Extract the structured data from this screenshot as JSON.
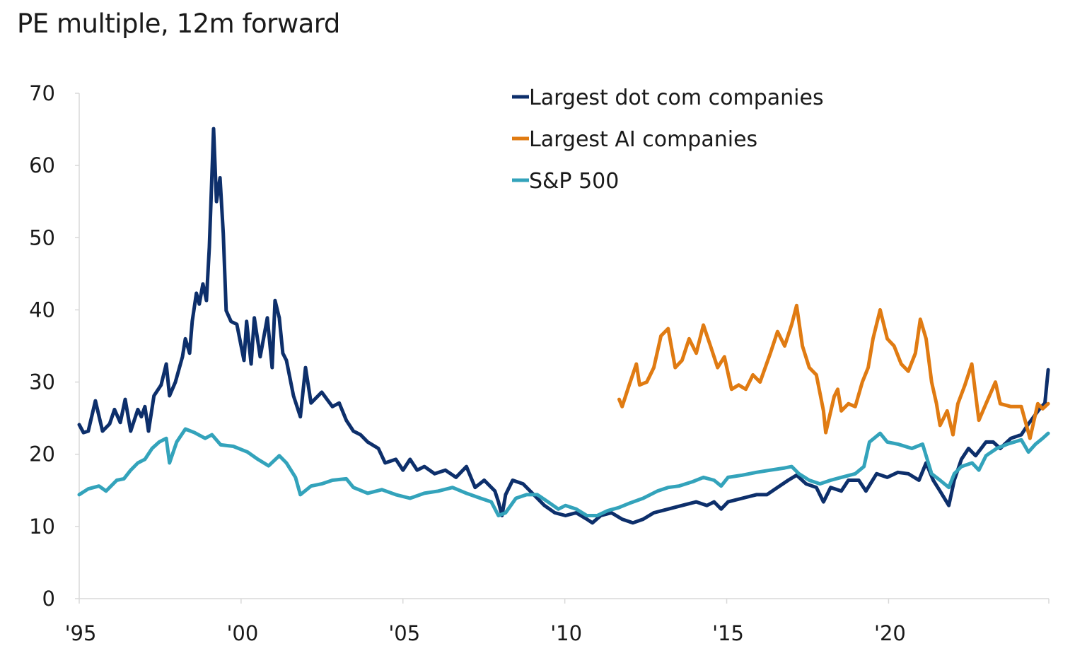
{
  "chart_data": {
    "type": "line",
    "title": "PE multiple, 12m forward",
    "xlabel": "",
    "ylabel": "",
    "xlim": [
      1995,
      2024.95
    ],
    "ylim": [
      0,
      70
    ],
    "yticks": [
      0,
      10,
      20,
      30,
      40,
      50,
      60,
      70
    ],
    "xticks": [
      {
        "value": 1995,
        "label": "'95"
      },
      {
        "value": 2000,
        "label": "'00"
      },
      {
        "value": 2005,
        "label": "'05"
      },
      {
        "value": 2010,
        "label": "'10"
      },
      {
        "value": 2015,
        "label": "'15"
      },
      {
        "value": 2020,
        "label": "'20"
      }
    ],
    "grid": false,
    "legend_position": "top-center",
    "series": [
      {
        "name": "Largest dot com companies",
        "color": "#0d2f6b",
        "points": [
          [
            1995.0,
            24.1
          ],
          [
            1995.13,
            23
          ],
          [
            1995.28,
            23.2
          ],
          [
            1995.5,
            27.4
          ],
          [
            1995.72,
            23.2
          ],
          [
            1995.94,
            24.2
          ],
          [
            1996.09,
            26.2
          ],
          [
            1996.27,
            24.4
          ],
          [
            1996.42,
            27.6
          ],
          [
            1996.59,
            23.2
          ],
          [
            1996.81,
            26.2
          ],
          [
            1996.92,
            25.2
          ],
          [
            1997.03,
            26.6
          ],
          [
            1997.14,
            23.2
          ],
          [
            1997.31,
            28.1
          ],
          [
            1997.53,
            29.6
          ],
          [
            1997.69,
            32.5
          ],
          [
            1997.79,
            28.1
          ],
          [
            1997.97,
            30
          ],
          [
            1998.19,
            33.5
          ],
          [
            1998.28,
            36
          ],
          [
            1998.41,
            34
          ],
          [
            1998.49,
            38.4
          ],
          [
            1998.62,
            42.3
          ],
          [
            1998.71,
            40.8
          ],
          [
            1998.82,
            43.6
          ],
          [
            1998.93,
            41.3
          ],
          [
            1999.02,
            48.7
          ],
          [
            1999.15,
            65.1
          ],
          [
            1999.24,
            55
          ],
          [
            1999.35,
            58.3
          ],
          [
            1999.45,
            50.6
          ],
          [
            1999.54,
            39.9
          ],
          [
            1999.69,
            38.4
          ],
          [
            1999.87,
            38
          ],
          [
            2000.09,
            33
          ],
          [
            2000.17,
            38.4
          ],
          [
            2000.31,
            32.5
          ],
          [
            2000.41,
            38.9
          ],
          [
            2000.59,
            33.5
          ],
          [
            2000.81,
            38.9
          ],
          [
            2000.96,
            32
          ],
          [
            2001.05,
            41.3
          ],
          [
            2001.18,
            38.9
          ],
          [
            2001.29,
            34
          ],
          [
            2001.4,
            33
          ],
          [
            2001.62,
            28.1
          ],
          [
            2001.83,
            25.2
          ],
          [
            2001.99,
            32
          ],
          [
            2002.16,
            27.1
          ],
          [
            2002.49,
            28.6
          ],
          [
            2002.82,
            26.6
          ],
          [
            2003.03,
            27.1
          ],
          [
            2003.25,
            24.7
          ],
          [
            2003.47,
            23.2
          ],
          [
            2003.69,
            22.7
          ],
          [
            2003.91,
            21.7
          ],
          [
            2004.24,
            20.8
          ],
          [
            2004.45,
            18.8
          ],
          [
            2004.78,
            19.3
          ],
          [
            2005.0,
            17.8
          ],
          [
            2005.22,
            19.3
          ],
          [
            2005.44,
            17.8
          ],
          [
            2005.66,
            18.3
          ],
          [
            2005.98,
            17.3
          ],
          [
            2006.31,
            17.8
          ],
          [
            2006.64,
            16.8
          ],
          [
            2006.96,
            18.3
          ],
          [
            2007.23,
            15.4
          ],
          [
            2007.51,
            16.4
          ],
          [
            2007.84,
            14.9
          ],
          [
            2007.95,
            13.4
          ],
          [
            2008.06,
            11.5
          ],
          [
            2008.17,
            14.4
          ],
          [
            2008.39,
            16.4
          ],
          [
            2008.71,
            15.9
          ],
          [
            2009.04,
            14.4
          ],
          [
            2009.37,
            12.9
          ],
          [
            2009.69,
            11.9
          ],
          [
            2010.02,
            11.5
          ],
          [
            2010.35,
            11.9
          ],
          [
            2010.68,
            11
          ],
          [
            2010.85,
            10.5
          ],
          [
            2011.11,
            11.5
          ],
          [
            2011.44,
            11.9
          ],
          [
            2011.77,
            11
          ],
          [
            2012.1,
            10.5
          ],
          [
            2012.42,
            11
          ],
          [
            2012.75,
            11.9
          ],
          [
            2013.19,
            12.4
          ],
          [
            2013.62,
            12.9
          ],
          [
            2014.06,
            13.4
          ],
          [
            2014.39,
            12.9
          ],
          [
            2014.61,
            13.4
          ],
          [
            2014.83,
            12.4
          ],
          [
            2015.04,
            13.4
          ],
          [
            2015.48,
            13.9
          ],
          [
            2015.92,
            14.4
          ],
          [
            2016.24,
            14.4
          ],
          [
            2016.57,
            15.4
          ],
          [
            2016.9,
            16.4
          ],
          [
            2017.16,
            17.1
          ],
          [
            2017.45,
            15.9
          ],
          [
            2017.77,
            15.4
          ],
          [
            2017.99,
            13.4
          ],
          [
            2018.21,
            15.4
          ],
          [
            2018.54,
            14.9
          ],
          [
            2018.76,
            16.4
          ],
          [
            2019.08,
            16.4
          ],
          [
            2019.3,
            14.9
          ],
          [
            2019.63,
            17.3
          ],
          [
            2019.96,
            16.8
          ],
          [
            2020.29,
            17.5
          ],
          [
            2020.61,
            17.3
          ],
          [
            2020.94,
            16.4
          ],
          [
            2021.16,
            18.8
          ],
          [
            2021.38,
            16.4
          ],
          [
            2021.59,
            14.9
          ],
          [
            2021.86,
            12.9
          ],
          [
            2022.03,
            16.4
          ],
          [
            2022.25,
            19.3
          ],
          [
            2022.47,
            20.8
          ],
          [
            2022.69,
            19.8
          ],
          [
            2023.01,
            21.7
          ],
          [
            2023.23,
            21.7
          ],
          [
            2023.45,
            20.8
          ],
          [
            2023.78,
            22.2
          ],
          [
            2024.1,
            22.7
          ],
          [
            2024.32,
            24.2
          ],
          [
            2024.65,
            26.2
          ],
          [
            2024.83,
            27.1
          ],
          [
            2024.93,
            31.7
          ]
        ]
      },
      {
        "name": "Largest AI companies",
        "color": "#e07b12",
        "points": [
          [
            2011.68,
            27.6
          ],
          [
            2011.77,
            26.6
          ],
          [
            2011.99,
            29.6
          ],
          [
            2012.21,
            32.5
          ],
          [
            2012.31,
            29.6
          ],
          [
            2012.53,
            30
          ],
          [
            2012.75,
            32
          ],
          [
            2012.97,
            36.4
          ],
          [
            2013.19,
            37.4
          ],
          [
            2013.41,
            32
          ],
          [
            2013.62,
            33
          ],
          [
            2013.84,
            36
          ],
          [
            2014.06,
            34
          ],
          [
            2014.28,
            37.9
          ],
          [
            2014.5,
            35
          ],
          [
            2014.72,
            32
          ],
          [
            2014.93,
            33.5
          ],
          [
            2015.15,
            29
          ],
          [
            2015.37,
            29.6
          ],
          [
            2015.59,
            29
          ],
          [
            2015.81,
            31
          ],
          [
            2016.03,
            30
          ],
          [
            2016.35,
            34
          ],
          [
            2016.57,
            37
          ],
          [
            2016.79,
            35
          ],
          [
            2017.01,
            38
          ],
          [
            2017.16,
            40.6
          ],
          [
            2017.34,
            35
          ],
          [
            2017.55,
            32
          ],
          [
            2017.77,
            31
          ],
          [
            2017.99,
            26
          ],
          [
            2018.06,
            23
          ],
          [
            2018.32,
            28
          ],
          [
            2018.43,
            29
          ],
          [
            2018.54,
            26
          ],
          [
            2018.76,
            27
          ],
          [
            2018.97,
            26.6
          ],
          [
            2019.19,
            30
          ],
          [
            2019.37,
            32
          ],
          [
            2019.52,
            36
          ],
          [
            2019.74,
            40
          ],
          [
            2019.96,
            36
          ],
          [
            2020.17,
            35
          ],
          [
            2020.39,
            32.5
          ],
          [
            2020.61,
            31.5
          ],
          [
            2020.83,
            34
          ],
          [
            2020.98,
            38.7
          ],
          [
            2021.16,
            36
          ],
          [
            2021.33,
            30
          ],
          [
            2021.48,
            27
          ],
          [
            2021.59,
            24
          ],
          [
            2021.81,
            26
          ],
          [
            2021.99,
            22.7
          ],
          [
            2022.14,
            27
          ],
          [
            2022.36,
            29.6
          ],
          [
            2022.57,
            32.5
          ],
          [
            2022.79,
            24.7
          ],
          [
            2023.01,
            27
          ],
          [
            2023.3,
            30
          ],
          [
            2023.45,
            27
          ],
          [
            2023.78,
            26.6
          ],
          [
            2024.1,
            26.6
          ],
          [
            2024.37,
            22.2
          ],
          [
            2024.61,
            27
          ],
          [
            2024.76,
            26.3
          ],
          [
            2024.93,
            27
          ]
        ]
      },
      {
        "name": "S&P 500",
        "color": "#33a3bb",
        "points": [
          [
            1995.0,
            14.4
          ],
          [
            1995.28,
            15.2
          ],
          [
            1995.61,
            15.6
          ],
          [
            1995.83,
            14.9
          ],
          [
            1996.16,
            16.4
          ],
          [
            1996.38,
            16.6
          ],
          [
            1996.59,
            17.8
          ],
          [
            1996.81,
            18.8
          ],
          [
            1997.03,
            19.3
          ],
          [
            1997.25,
            20.8
          ],
          [
            1997.47,
            21.7
          ],
          [
            1997.69,
            22.2
          ],
          [
            1997.79,
            18.8
          ],
          [
            1998.01,
            21.7
          ],
          [
            1998.28,
            23.5
          ],
          [
            1998.56,
            23
          ],
          [
            1998.89,
            22.2
          ],
          [
            1999.1,
            22.7
          ],
          [
            1999.37,
            21.3
          ],
          [
            1999.76,
            21.1
          ],
          [
            2000.2,
            20.3
          ],
          [
            2000.52,
            19.3
          ],
          [
            2000.85,
            18.4
          ],
          [
            2001.18,
            19.8
          ],
          [
            2001.4,
            18.8
          ],
          [
            2001.68,
            16.8
          ],
          [
            2001.83,
            14.4
          ],
          [
            2002.16,
            15.6
          ],
          [
            2002.49,
            15.9
          ],
          [
            2002.82,
            16.4
          ],
          [
            2003.25,
            16.6
          ],
          [
            2003.47,
            15.4
          ],
          [
            2003.91,
            14.6
          ],
          [
            2004.35,
            15.1
          ],
          [
            2004.78,
            14.4
          ],
          [
            2005.22,
            13.9
          ],
          [
            2005.66,
            14.6
          ],
          [
            2006.09,
            14.9
          ],
          [
            2006.53,
            15.4
          ],
          [
            2006.96,
            14.6
          ],
          [
            2007.4,
            13.9
          ],
          [
            2007.73,
            13.4
          ],
          [
            2007.95,
            11.5
          ],
          [
            2008.17,
            11.9
          ],
          [
            2008.49,
            13.9
          ],
          [
            2008.82,
            14.4
          ],
          [
            2009.15,
            14.4
          ],
          [
            2009.48,
            13.4
          ],
          [
            2009.8,
            12.4
          ],
          [
            2010.02,
            12.9
          ],
          [
            2010.35,
            12.4
          ],
          [
            2010.68,
            11.5
          ],
          [
            2011.0,
            11.5
          ],
          [
            2011.33,
            12.2
          ],
          [
            2011.66,
            12.6
          ],
          [
            2011.99,
            13.2
          ],
          [
            2012.42,
            13.9
          ],
          [
            2012.86,
            14.9
          ],
          [
            2013.19,
            15.4
          ],
          [
            2013.52,
            15.6
          ],
          [
            2013.95,
            16.2
          ],
          [
            2014.28,
            16.8
          ],
          [
            2014.61,
            16.4
          ],
          [
            2014.83,
            15.6
          ],
          [
            2015.04,
            16.8
          ],
          [
            2015.48,
            17.1
          ],
          [
            2015.92,
            17.5
          ],
          [
            2016.35,
            17.8
          ],
          [
            2016.79,
            18.1
          ],
          [
            2017.01,
            18.3
          ],
          [
            2017.23,
            17.3
          ],
          [
            2017.55,
            16.4
          ],
          [
            2017.88,
            15.9
          ],
          [
            2018.21,
            16.4
          ],
          [
            2018.54,
            16.8
          ],
          [
            2018.97,
            17.3
          ],
          [
            2019.24,
            18.3
          ],
          [
            2019.41,
            21.7
          ],
          [
            2019.74,
            22.9
          ],
          [
            2019.96,
            21.7
          ],
          [
            2020.29,
            21.4
          ],
          [
            2020.72,
            20.8
          ],
          [
            2021.05,
            21.4
          ],
          [
            2021.33,
            17.3
          ],
          [
            2021.59,
            16.4
          ],
          [
            2021.86,
            15.4
          ],
          [
            2022.03,
            17.3
          ],
          [
            2022.25,
            18.3
          ],
          [
            2022.58,
            18.8
          ],
          [
            2022.79,
            17.8
          ],
          [
            2023.01,
            19.8
          ],
          [
            2023.34,
            20.8
          ],
          [
            2023.67,
            21.4
          ],
          [
            2024.1,
            22
          ],
          [
            2024.32,
            20.3
          ],
          [
            2024.54,
            21.4
          ],
          [
            2024.76,
            22.2
          ],
          [
            2024.93,
            22.9
          ]
        ]
      }
    ]
  }
}
